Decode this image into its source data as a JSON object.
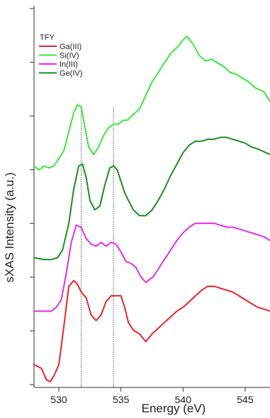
{
  "chart_data": {
    "type": "line",
    "title": "",
    "xlabel": "Energy (eV)",
    "ylabel": "sXAS Intensity (a.u.)",
    "xlim": [
      528,
      547
    ],
    "ylim": [
      0,
      100
    ],
    "x_ticks": [
      530,
      535,
      540,
      545
    ],
    "y_tick_labels_shown": false,
    "grid": false,
    "legend": {
      "title": "TFY",
      "position": "top-left"
    },
    "reference_lines_x": [
      531.8,
      534.4
    ],
    "series": [
      {
        "name": "Ga(III)",
        "color": "#e8262a",
        "x": [
          528.0,
          528.6,
          529.0,
          529.3,
          529.6,
          530.0,
          530.4,
          530.8,
          531.2,
          531.5,
          531.8,
          532.2,
          532.6,
          533.0,
          533.4,
          533.8,
          534.2,
          534.6,
          535.0,
          535.3,
          535.6,
          536.0,
          536.5,
          537.0,
          537.5,
          538.0,
          538.5,
          539.0,
          539.5,
          540.0,
          540.5,
          541.0,
          541.5,
          542.0,
          542.5,
          543.0,
          543.5,
          544.0,
          544.5,
          545.0,
          545.5,
          546.0,
          547.0
        ],
        "y": [
          6.0,
          5.0,
          2.0,
          1.5,
          3.0,
          6.0,
          16.0,
          26.5,
          28.0,
          27.0,
          25.0,
          23.5,
          19.0,
          17.5,
          19.0,
          22.5,
          24.0,
          24.0,
          24.0,
          21.0,
          17.0,
          15.0,
          14.0,
          12.0,
          14.0,
          15.5,
          17.0,
          18.5,
          20.0,
          21.0,
          22.5,
          24.0,
          25.5,
          26.5,
          26.5,
          26.0,
          25.5,
          25.0,
          24.0,
          23.0,
          22.0,
          21.0,
          20.0
        ]
      },
      {
        "name": "Si(IV)",
        "color": "#39e83b",
        "x": [
          528.0,
          528.4,
          528.8,
          529.2,
          529.6,
          530.0,
          530.4,
          530.8,
          531.2,
          531.5,
          531.8,
          532.1,
          532.4,
          532.8,
          533.2,
          533.6,
          534.0,
          534.4,
          534.8,
          535.2,
          535.5,
          536.0,
          536.5,
          537.0,
          537.5,
          538.0,
          538.5,
          539.0,
          539.5,
          540.0,
          540.3,
          540.8,
          541.3,
          541.8,
          542.3,
          542.8,
          543.3,
          543.8,
          544.3,
          544.8,
          545.3,
          545.8,
          546.5,
          547.0
        ],
        "y": [
          58.0,
          57.0,
          58.0,
          57.5,
          58.0,
          60.0,
          62.0,
          67.0,
          72.0,
          74.0,
          73.5,
          68.0,
          63.0,
          61.0,
          63.0,
          66.0,
          68.0,
          69.0,
          69.0,
          70.0,
          70.0,
          71.5,
          73.0,
          76.5,
          80.0,
          82.5,
          85.0,
          87.5,
          89.0,
          91.0,
          92.0,
          90.0,
          87.0,
          85.5,
          86.0,
          85.0,
          84.0,
          82.5,
          82.0,
          81.0,
          80.0,
          78.5,
          77.5,
          75.0
        ]
      },
      {
        "name": "In(III)",
        "color": "#e42ee3",
        "x": [
          528.0,
          528.8,
          529.4,
          529.8,
          530.2,
          530.6,
          531.0,
          531.4,
          531.8,
          532.2,
          532.6,
          533.0,
          533.4,
          533.8,
          534.2,
          534.6,
          535.0,
          535.4,
          535.8,
          536.2,
          536.6,
          537.0,
          537.6,
          538.0,
          538.5,
          539.0,
          539.5,
          540.0,
          540.5,
          541.0,
          541.5,
          542.0,
          542.5,
          543.0,
          543.5,
          544.0,
          544.5,
          545.0,
          545.5,
          546.0,
          546.5,
          547.0
        ],
        "y": [
          20.0,
          20.0,
          20.0,
          21.0,
          23.0,
          30.0,
          38.0,
          42.5,
          42.0,
          39.0,
          37.5,
          37.0,
          38.0,
          37.0,
          38.0,
          37.5,
          35.5,
          33.0,
          32.5,
          31.5,
          29.0,
          27.5,
          29.0,
          31.0,
          33.5,
          36.0,
          38.5,
          40.5,
          42.0,
          43.0,
          43.0,
          43.0,
          43.0,
          42.5,
          42.0,
          42.0,
          41.5,
          41.0,
          40.5,
          40.0,
          39.5,
          38.5
        ]
      },
      {
        "name": "Ge(IV)",
        "color": "#1a8e22",
        "x": [
          528.0,
          528.8,
          529.4,
          529.9,
          530.3,
          530.8,
          531.2,
          531.6,
          531.9,
          532.2,
          532.5,
          532.9,
          533.3,
          533.7,
          534.1,
          534.4,
          534.7,
          535.0,
          535.3,
          535.6,
          536.0,
          536.5,
          537.0,
          537.5,
          538.0,
          538.5,
          539.0,
          539.5,
          540.0,
          540.5,
          541.0,
          541.5,
          542.0,
          542.5,
          543.0,
          543.5,
          544.0,
          544.5,
          545.0,
          545.5,
          546.0,
          547.0
        ],
        "y": [
          34.0,
          33.5,
          33.5,
          34.0,
          36.0,
          43.0,
          52.0,
          58.0,
          58.5,
          55.0,
          49.0,
          46.5,
          47.5,
          53.0,
          57.5,
          58.0,
          57.0,
          54.0,
          51.0,
          49.0,
          46.5,
          45.0,
          45.0,
          46.5,
          49.0,
          52.0,
          55.5,
          58.5,
          61.5,
          63.5,
          64.5,
          64.5,
          65.0,
          65.0,
          65.5,
          65.5,
          65.0,
          64.5,
          64.0,
          63.0,
          62.5,
          61.0
        ]
      }
    ]
  }
}
